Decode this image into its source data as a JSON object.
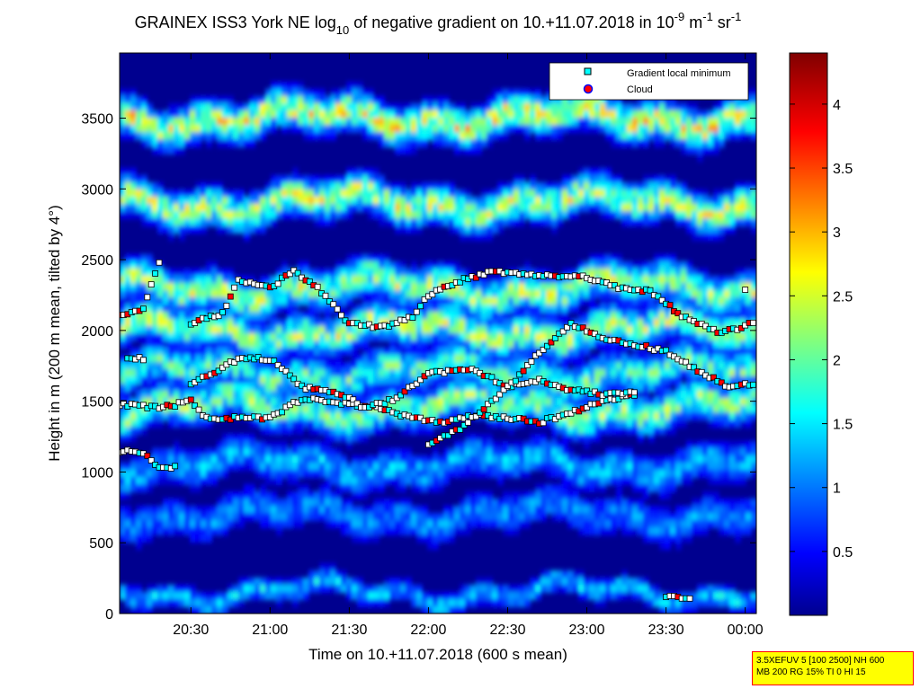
{
  "chart_data": {
    "type": "heatmap",
    "title": {
      "prefix": "GRAINEX ISS3 York NE log",
      "log_base": "10",
      "middle": " of negative gradient on 10.+11.07.2018 in 10",
      "exp1": "-9",
      "unit1": " m",
      "exp2": "-1",
      "unit2": " sr",
      "exp3": "-1"
    },
    "xlabel": "Time on 10.+11.07.2018 (600 s mean)",
    "ylabel": "Height in m (200 m mean, tilted by 4°)",
    "x_tick_labels": [
      "20:30",
      "21:00",
      "21:30",
      "22:00",
      "22:30",
      "23:00",
      "23:30",
      "00:00"
    ],
    "x_ticks_hours": [
      20.5,
      21.0,
      21.5,
      22.0,
      22.5,
      23.0,
      23.5,
      24.0
    ],
    "xlim_hours": [
      20.05,
      24.07
    ],
    "y_ticks": [
      0,
      500,
      1000,
      1500,
      2000,
      2500,
      3000,
      3500
    ],
    "ylim": [
      0,
      3960
    ],
    "colorbar": {
      "ticks": [
        0.5,
        1,
        1.5,
        2,
        2.5,
        3,
        3.5,
        4
      ],
      "tick_labels": [
        "0.5",
        "1",
        "1.5",
        "2",
        "2.5",
        "3",
        "3.5",
        "4"
      ],
      "range": [
        0,
        4.4
      ],
      "colormap": "jet"
    },
    "legend": {
      "placement": "top-right",
      "entries": [
        {
          "label": "Gradient local minimum",
          "color": "#00ffff",
          "marker": "square"
        },
        {
          "label": "Cloud",
          "color": "#ff0000",
          "marker": "circle"
        }
      ]
    },
    "layers": [
      {
        "height": 150,
        "level": 1.6
      },
      {
        "height": 700,
        "level": 1.3
      },
      {
        "height": 1050,
        "level": 1.5
      },
      {
        "height": 1450,
        "level": 2.4
      },
      {
        "height": 1700,
        "level": 2.2
      },
      {
        "height": 2000,
        "level": 2.6
      },
      {
        "height": 2300,
        "level": 2.6
      },
      {
        "height": 2900,
        "level": 2.7
      },
      {
        "height": 3500,
        "level": 2.9
      }
    ],
    "minimum_tracks": [
      {
        "name": "",
        "points": [
          [
            20.05,
            1150
          ],
          [
            20.2,
            1140
          ],
          [
            20.3,
            1030
          ],
          [
            20.4,
            1040
          ]
        ]
      },
      {
        "name": "",
        "points": [
          [
            20.05,
            1480
          ],
          [
            20.3,
            1450
          ],
          [
            20.5,
            1500
          ],
          [
            20.6,
            1380
          ],
          [
            20.8,
            1380
          ],
          [
            21.0,
            1380
          ],
          [
            21.2,
            1520
          ],
          [
            21.5,
            1480
          ],
          [
            21.7,
            1450
          ],
          [
            21.9,
            1380
          ],
          [
            22.1,
            1350
          ],
          [
            22.3,
            1400
          ],
          [
            22.5,
            1380
          ],
          [
            22.7,
            1350
          ],
          [
            22.9,
            1420
          ],
          [
            23.1,
            1500
          ],
          [
            23.3,
            1550
          ]
        ]
      },
      {
        "name": "",
        "points": [
          [
            20.05,
            2100
          ],
          [
            20.2,
            2150
          ],
          [
            20.3,
            2490
          ]
        ]
      },
      {
        "name": "",
        "points": [
          [
            20.1,
            1800
          ],
          [
            20.2,
            1800
          ]
        ]
      },
      {
        "name": "",
        "points": [
          [
            20.5,
            1620
          ],
          [
            20.8,
            1800
          ],
          [
            21.0,
            1800
          ],
          [
            21.2,
            1600
          ],
          [
            21.45,
            1550
          ],
          [
            21.6,
            1450
          ],
          [
            21.8,
            1520
          ],
          [
            22.0,
            1700
          ],
          [
            22.3,
            1720
          ],
          [
            22.5,
            1600
          ],
          [
            22.7,
            1650
          ],
          [
            22.9,
            1580
          ],
          [
            23.1,
            1550
          ],
          [
            23.3,
            1560
          ]
        ]
      },
      {
        "name": "",
        "points": [
          [
            20.5,
            2050
          ],
          [
            20.7,
            2120
          ],
          [
            20.8,
            2350
          ],
          [
            21.0,
            2300
          ],
          [
            21.15,
            2420
          ],
          [
            21.3,
            2300
          ],
          [
            21.5,
            2050
          ],
          [
            21.7,
            2020
          ],
          [
            21.9,
            2100
          ],
          [
            22.0,
            2250
          ],
          [
            22.2,
            2350
          ],
          [
            22.4,
            2420
          ],
          [
            22.6,
            2400
          ],
          [
            22.8,
            2380
          ],
          [
            23.0,
            2380
          ],
          [
            23.2,
            2300
          ],
          [
            23.4,
            2280
          ],
          [
            23.6,
            2100
          ],
          [
            23.85,
            1980
          ],
          [
            24.05,
            2050
          ]
        ]
      },
      {
        "name": "",
        "points": [
          [
            22.0,
            1200
          ],
          [
            22.2,
            1300
          ],
          [
            22.4,
            1500
          ],
          [
            22.55,
            1650
          ],
          [
            22.7,
            1850
          ],
          [
            22.9,
            2050
          ],
          [
            23.1,
            1950
          ],
          [
            23.3,
            1900
          ],
          [
            23.5,
            1850
          ],
          [
            23.7,
            1720
          ],
          [
            23.9,
            1600
          ],
          [
            24.05,
            1620
          ]
        ]
      },
      {
        "name": "",
        "points": [
          [
            23.5,
            120
          ],
          [
            23.65,
            110
          ]
        ]
      },
      {
        "name": "",
        "points": [
          [
            24.0,
            2300
          ]
        ]
      }
    ]
  },
  "info_box": {
    "line1": "3.5XEFUV 5 [100 2500] NH 600",
    "line2": "MB 200 RG 15% TI 0 HI 15"
  }
}
